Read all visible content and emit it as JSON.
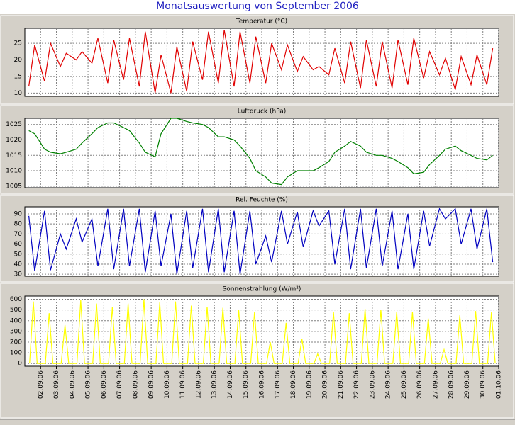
{
  "title": "Monatsauswertung von September 2006",
  "chart_data": [
    {
      "type": "line",
      "title": "Temperatur (°C)",
      "x": [
        1.25,
        1.625,
        2.25,
        2.625,
        3.25,
        3.625,
        4.25,
        4.625,
        5.25,
        5.625,
        6.25,
        6.625,
        7.25,
        7.625,
        8.25,
        8.625,
        9.25,
        9.625,
        10.25,
        10.625,
        11.25,
        11.625,
        12.25,
        12.625,
        13.25,
        13.625,
        14.25,
        14.625,
        15.25,
        15.625,
        16.25,
        16.625,
        17.25,
        17.625,
        18.25,
        18.625,
        19.25,
        19.625,
        20.25,
        20.625,
        21.25,
        21.625,
        22.25,
        22.625,
        23.25,
        23.625,
        24.25,
        24.625,
        25.25,
        25.625,
        26.25,
        26.625,
        27.25,
        27.625,
        28.25,
        28.625,
        29.25,
        29.625,
        30.25,
        30.625
      ],
      "series": [
        {
          "color": "#e00000",
          "values": [
            12,
            24.5,
            13.5,
            25,
            18,
            22,
            20,
            22.5,
            19,
            26.5,
            13,
            26,
            14,
            26.5,
            12,
            28.5,
            10,
            21.5,
            10,
            24,
            10.5,
            25.5,
            14,
            28.5,
            13,
            29,
            12,
            28.5,
            13,
            27,
            13,
            25,
            17,
            24.5,
            16.5,
            21,
            17,
            18,
            15.5,
            23.5,
            13,
            25.5,
            11.5,
            26,
            12,
            25.5,
            11.5,
            26,
            12.5,
            26.5,
            14.5,
            22.5,
            15.5,
            20.5,
            11,
            21,
            12.5,
            21.5,
            12.5,
            23.5
          ]
        }
      ],
      "xlim": [
        1,
        31
      ],
      "ylim": [
        9,
        29.5
      ],
      "yticks": [
        10,
        15,
        20,
        25
      ],
      "grid": true
    },
    {
      "type": "line",
      "title": "Luftdruck (hPa)",
      "x": [
        1.25,
        1.625,
        2.25,
        2.625,
        3.25,
        3.625,
        4.25,
        4.625,
        5.25,
        5.625,
        6.25,
        6.625,
        7.25,
        7.625,
        8.25,
        8.625,
        9.25,
        9.625,
        10.25,
        10.625,
        11.25,
        11.625,
        12.25,
        12.625,
        13.25,
        13.625,
        14.25,
        14.625,
        15.25,
        15.625,
        16.25,
        16.625,
        17.25,
        17.625,
        18.25,
        18.625,
        19.25,
        19.625,
        20.25,
        20.625,
        21.25,
        21.625,
        22.25,
        22.625,
        23.25,
        23.625,
        24.25,
        24.625,
        25.25,
        25.625,
        26.25,
        26.625,
        27.25,
        27.625,
        28.25,
        28.625,
        29.25,
        29.625,
        30.25,
        30.625
      ],
      "series": [
        {
          "color": "#008000",
          "values": [
            1023,
            1022,
            1017,
            1016,
            1015.5,
            1016,
            1017,
            1019,
            1022,
            1024,
            1025.5,
            1025.5,
            1024,
            1023,
            1019,
            1016,
            1014.5,
            1022,
            1027,
            1027,
            1026,
            1025.5,
            1025,
            1024,
            1021,
            1021,
            1020,
            1018,
            1014,
            1010,
            1008,
            1006,
            1005.5,
            1008,
            1010,
            1010,
            1010,
            1011,
            1013,
            1016,
            1018,
            1019.5,
            1018,
            1016,
            1015,
            1015,
            1014,
            1013,
            1011,
            1009,
            1009.5,
            1012,
            1015,
            1017,
            1018,
            1016.5,
            1015,
            1014,
            1013.5,
            1015
          ]
        }
      ],
      "xlim": [
        1,
        31
      ],
      "ylim": [
        1004.5,
        1027
      ],
      "yticks": [
        1005,
        1010,
        1015,
        1020,
        1025
      ],
      "grid": true
    },
    {
      "type": "line",
      "title": "Rel. Feuchte (%)",
      "x": [
        1.25,
        1.625,
        2.25,
        2.625,
        3.25,
        3.625,
        4.25,
        4.625,
        5.25,
        5.625,
        6.25,
        6.625,
        7.25,
        7.625,
        8.25,
        8.625,
        9.25,
        9.625,
        10.25,
        10.625,
        11.25,
        11.625,
        12.25,
        12.625,
        13.25,
        13.625,
        14.25,
        14.625,
        15.25,
        15.625,
        16.25,
        16.625,
        17.25,
        17.625,
        18.25,
        18.625,
        19.25,
        19.625,
        20.25,
        20.625,
        21.25,
        21.625,
        22.25,
        22.625,
        23.25,
        23.625,
        24.25,
        24.625,
        25.25,
        25.625,
        26.25,
        26.625,
        27.25,
        27.625,
        28.25,
        28.625,
        29.25,
        29.625,
        30.25,
        30.625
      ],
      "series": [
        {
          "color": "#0000c0",
          "values": [
            88,
            33,
            93,
            34,
            70,
            55,
            85,
            62,
            85,
            38,
            95,
            35,
            95,
            38,
            95,
            32,
            93,
            38,
            90,
            30,
            93,
            36,
            95,
            32,
            95,
            32,
            93,
            30,
            93,
            40,
            68,
            42,
            93,
            60,
            92,
            57,
            93,
            78,
            93,
            40,
            95,
            35,
            95,
            36,
            95,
            38,
            93,
            35,
            90,
            35,
            93,
            58,
            95,
            85,
            95,
            60,
            95,
            55,
            95,
            42
          ]
        }
      ],
      "xlim": [
        1,
        31
      ],
      "ylim": [
        28,
        97
      ],
      "yticks": [
        30,
        40,
        50,
        60,
        70,
        80,
        90
      ],
      "grid": true
    },
    {
      "type": "line",
      "title": "Sonnenstrahlung (W/m²)",
      "x": [
        1.3,
        1.54,
        1.78,
        2.3,
        2.54,
        2.78,
        3.3,
        3.54,
        3.78,
        4.3,
        4.54,
        4.78,
        5.3,
        5.54,
        5.78,
        6.3,
        6.54,
        6.78,
        7.3,
        7.54,
        7.78,
        8.3,
        8.54,
        8.78,
        9.3,
        9.54,
        9.78,
        10.3,
        10.54,
        10.78,
        11.3,
        11.54,
        11.78,
        12.3,
        12.54,
        12.78,
        13.3,
        13.54,
        13.78,
        14.3,
        14.54,
        14.78,
        15.3,
        15.54,
        15.78,
        16.3,
        16.54,
        16.78,
        17.3,
        17.54,
        17.78,
        18.3,
        18.54,
        18.78,
        19.3,
        19.54,
        19.78,
        20.3,
        20.54,
        20.78,
        21.3,
        21.54,
        21.78,
        22.3,
        22.54,
        22.78,
        23.3,
        23.54,
        23.78,
        24.3,
        24.54,
        24.78,
        25.3,
        25.54,
        25.78,
        26.3,
        26.54,
        26.78,
        27.3,
        27.54,
        27.78,
        28.3,
        28.54,
        28.78,
        29.3,
        29.54,
        29.78,
        30.3,
        30.54,
        30.78
      ],
      "series": [
        {
          "color": "#ffff00",
          "values": [
            0,
            580,
            0,
            0,
            470,
            0,
            0,
            360,
            0,
            0,
            590,
            0,
            0,
            560,
            0,
            0,
            530,
            0,
            0,
            560,
            0,
            0,
            600,
            0,
            0,
            570,
            0,
            0,
            580,
            0,
            0,
            540,
            0,
            0,
            530,
            0,
            0,
            520,
            0,
            0,
            500,
            0,
            0,
            480,
            0,
            0,
            200,
            0,
            0,
            380,
            0,
            0,
            230,
            0,
            0,
            90,
            0,
            0,
            480,
            0,
            0,
            470,
            0,
            0,
            510,
            0,
            0,
            500,
            0,
            0,
            480,
            0,
            0,
            480,
            0,
            0,
            420,
            0,
            0,
            130,
            0,
            0,
            450,
            0,
            0,
            490,
            0,
            0,
            480,
            0
          ]
        }
      ],
      "xlim": [
        1,
        31
      ],
      "ylim": [
        -25,
        630
      ],
      "yticks": [
        0,
        100,
        200,
        300,
        400,
        500,
        600
      ],
      "grid": true,
      "xticks": [
        {
          "value": 2,
          "label": "02.09.06"
        },
        {
          "value": 3,
          "label": "03.09.06"
        },
        {
          "value": 4,
          "label": "04.09.06"
        },
        {
          "value": 5,
          "label": "05.09.06"
        },
        {
          "value": 6,
          "label": "06.09.06"
        },
        {
          "value": 7,
          "label": "07.09.06"
        },
        {
          "value": 8,
          "label": "08.09.06"
        },
        {
          "value": 9,
          "label": "09.09.06"
        },
        {
          "value": 10,
          "label": "10.09.06"
        },
        {
          "value": 11,
          "label": "11.09.06"
        },
        {
          "value": 12,
          "label": "12.09.06"
        },
        {
          "value": 13,
          "label": "13.09.06"
        },
        {
          "value": 14,
          "label": "14.09.06"
        },
        {
          "value": 15,
          "label": "15.09.06"
        },
        {
          "value": 16,
          "label": "16.09.06"
        },
        {
          "value": 17,
          "label": "17.09.06"
        },
        {
          "value": 18,
          "label": "18.09.06"
        },
        {
          "value": 19,
          "label": "19.09.06"
        },
        {
          "value": 20,
          "label": "20.09.06"
        },
        {
          "value": 21,
          "label": "21.09.06"
        },
        {
          "value": 22,
          "label": "22.09.06"
        },
        {
          "value": 23,
          "label": "23.09.06"
        },
        {
          "value": 24,
          "label": "24.09.06"
        },
        {
          "value": 25,
          "label": "25.09.06"
        },
        {
          "value": 26,
          "label": "26.09.06"
        },
        {
          "value": 27,
          "label": "27.09.06"
        },
        {
          "value": 28,
          "label": "28.09.06"
        },
        {
          "value": 29,
          "label": "29.09.06"
        },
        {
          "value": 30,
          "label": "30.09.06"
        },
        {
          "value": 31,
          "label": "01.10.06"
        }
      ]
    }
  ]
}
